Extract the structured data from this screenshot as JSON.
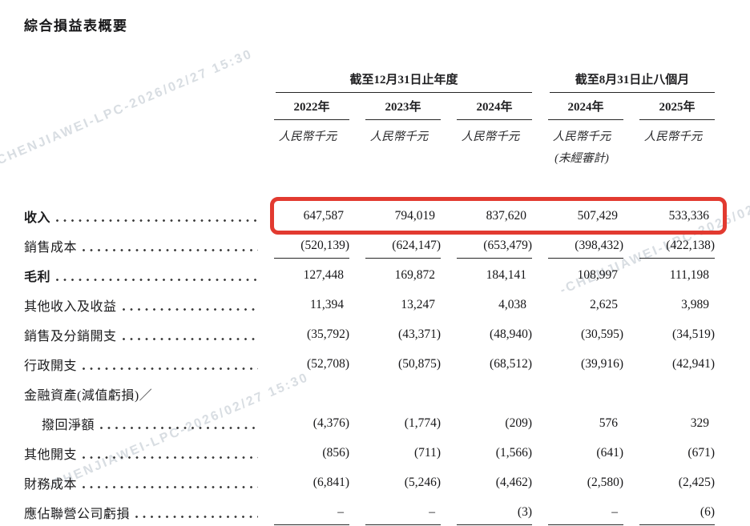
{
  "page": {
    "title": "綜合損益表概要"
  },
  "watermark": {
    "text": "-CHENJIAWEI-LPC-2026/02/27 15:30"
  },
  "colors": {
    "highlight_border": "#e23a30",
    "text": "#1f1f21",
    "rule": "#262626",
    "watermark": "#b2bbc6"
  },
  "table": {
    "col_groups": [
      {
        "label": "截至12月31日止年度",
        "span": 3
      },
      {
        "label": "截至8月31日止八個月",
        "span": 2
      }
    ],
    "columns": [
      {
        "year": "2022年",
        "unit": "人民幣千元",
        "note": ""
      },
      {
        "year": "2023年",
        "unit": "人民幣千元",
        "note": ""
      },
      {
        "year": "2024年",
        "unit": "人民幣千元",
        "note": ""
      },
      {
        "year": "2024年",
        "unit": "人民幣千元",
        "note": "(未經審計)"
      },
      {
        "year": "2025年",
        "unit": "人民幣千元",
        "note": ""
      }
    ],
    "rows": [
      {
        "label": "收入",
        "bold": true,
        "highlight": true,
        "values": [
          "647,587",
          "794,019",
          "837,620",
          "507,429",
          "533,336"
        ]
      },
      {
        "label": "銷售成本",
        "underline": true,
        "values": [
          "(520,139)",
          "(624,147)",
          "(653,479)",
          "(398,432)",
          "(422,138)"
        ]
      },
      {
        "label": "毛利",
        "bold": true,
        "values": [
          "127,448",
          "169,872",
          "184,141",
          "108,997",
          "111,198"
        ]
      },
      {
        "label": "其他收入及收益",
        "values": [
          "11,394",
          "13,247",
          "4,038",
          "2,625",
          "3,989"
        ]
      },
      {
        "label": "銷售及分銷開支",
        "values": [
          "(35,792)",
          "(43,371)",
          "(48,940)",
          "(30,595)",
          "(34,519)"
        ]
      },
      {
        "label": "行政開支",
        "values": [
          "(52,708)",
          "(50,875)",
          "(68,512)",
          "(39,916)",
          "(42,941)"
        ]
      },
      {
        "label": "金融資產(減值虧損)／",
        "label2": "撥回淨額",
        "values": [
          "(4,376)",
          "(1,774)",
          "(209)",
          "576",
          "329"
        ]
      },
      {
        "label": "其他開支",
        "values": [
          "(856)",
          "(711)",
          "(1,566)",
          "(641)",
          "(671)"
        ]
      },
      {
        "label": "財務成本",
        "values": [
          "(6,841)",
          "(5,246)",
          "(4,462)",
          "(2,580)",
          "(2,425)"
        ]
      },
      {
        "label": "應佔聯營公司虧損",
        "underline": true,
        "values": [
          "–",
          "–",
          "(3)",
          "–",
          "(6)"
        ]
      }
    ]
  }
}
